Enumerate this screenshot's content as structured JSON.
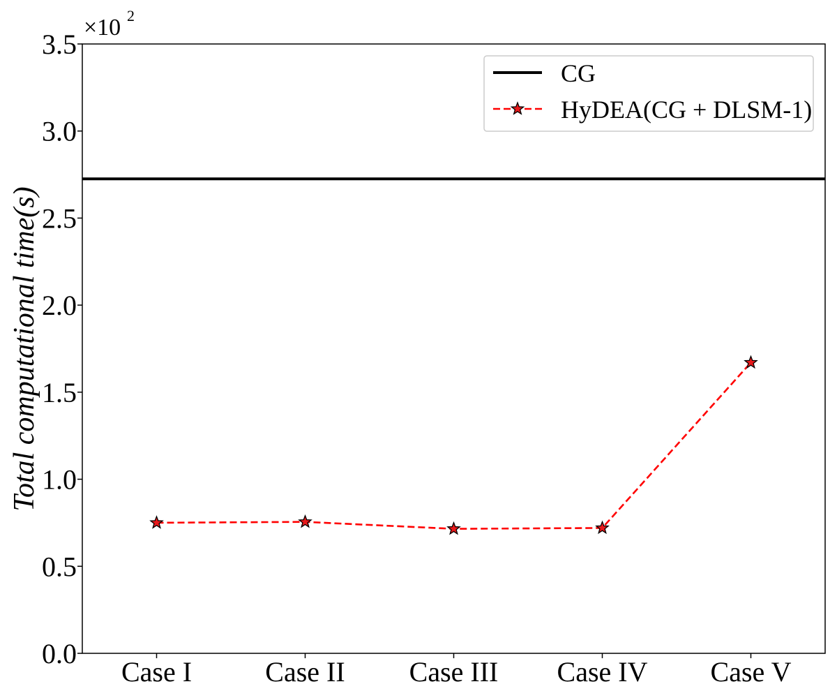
{
  "chart_data": {
    "type": "line",
    "title": "",
    "xlabel": "",
    "ylabel": "Total computational time(s)",
    "y_multiplier": {
      "base": "×10",
      "exponent": "2"
    },
    "categories": [
      "Case I",
      "Case II",
      "Case III",
      "Case IV",
      "Case V"
    ],
    "ylim": [
      0,
      3.5
    ],
    "yticks": [
      0.0,
      0.5,
      1.0,
      1.5,
      2.0,
      2.5,
      3.0,
      3.5
    ],
    "ytick_labels": [
      "0.0",
      "0.5",
      "1.0",
      "1.5",
      "2.0",
      "2.5",
      "3.0",
      "3.5"
    ],
    "grid": false,
    "legend_position": "top-right",
    "series": [
      {
        "name": "CG",
        "style": "solid-horizontal",
        "color": "#000000",
        "values": [
          2.725,
          2.725,
          2.725,
          2.725,
          2.725
        ]
      },
      {
        "name": "HyDEA(CG + DLSM-1)",
        "style": "dashed-star",
        "color": "#ff0000",
        "marker_face": "#e8191b",
        "values": [
          0.75,
          0.755,
          0.715,
          0.72,
          1.67
        ]
      }
    ]
  }
}
